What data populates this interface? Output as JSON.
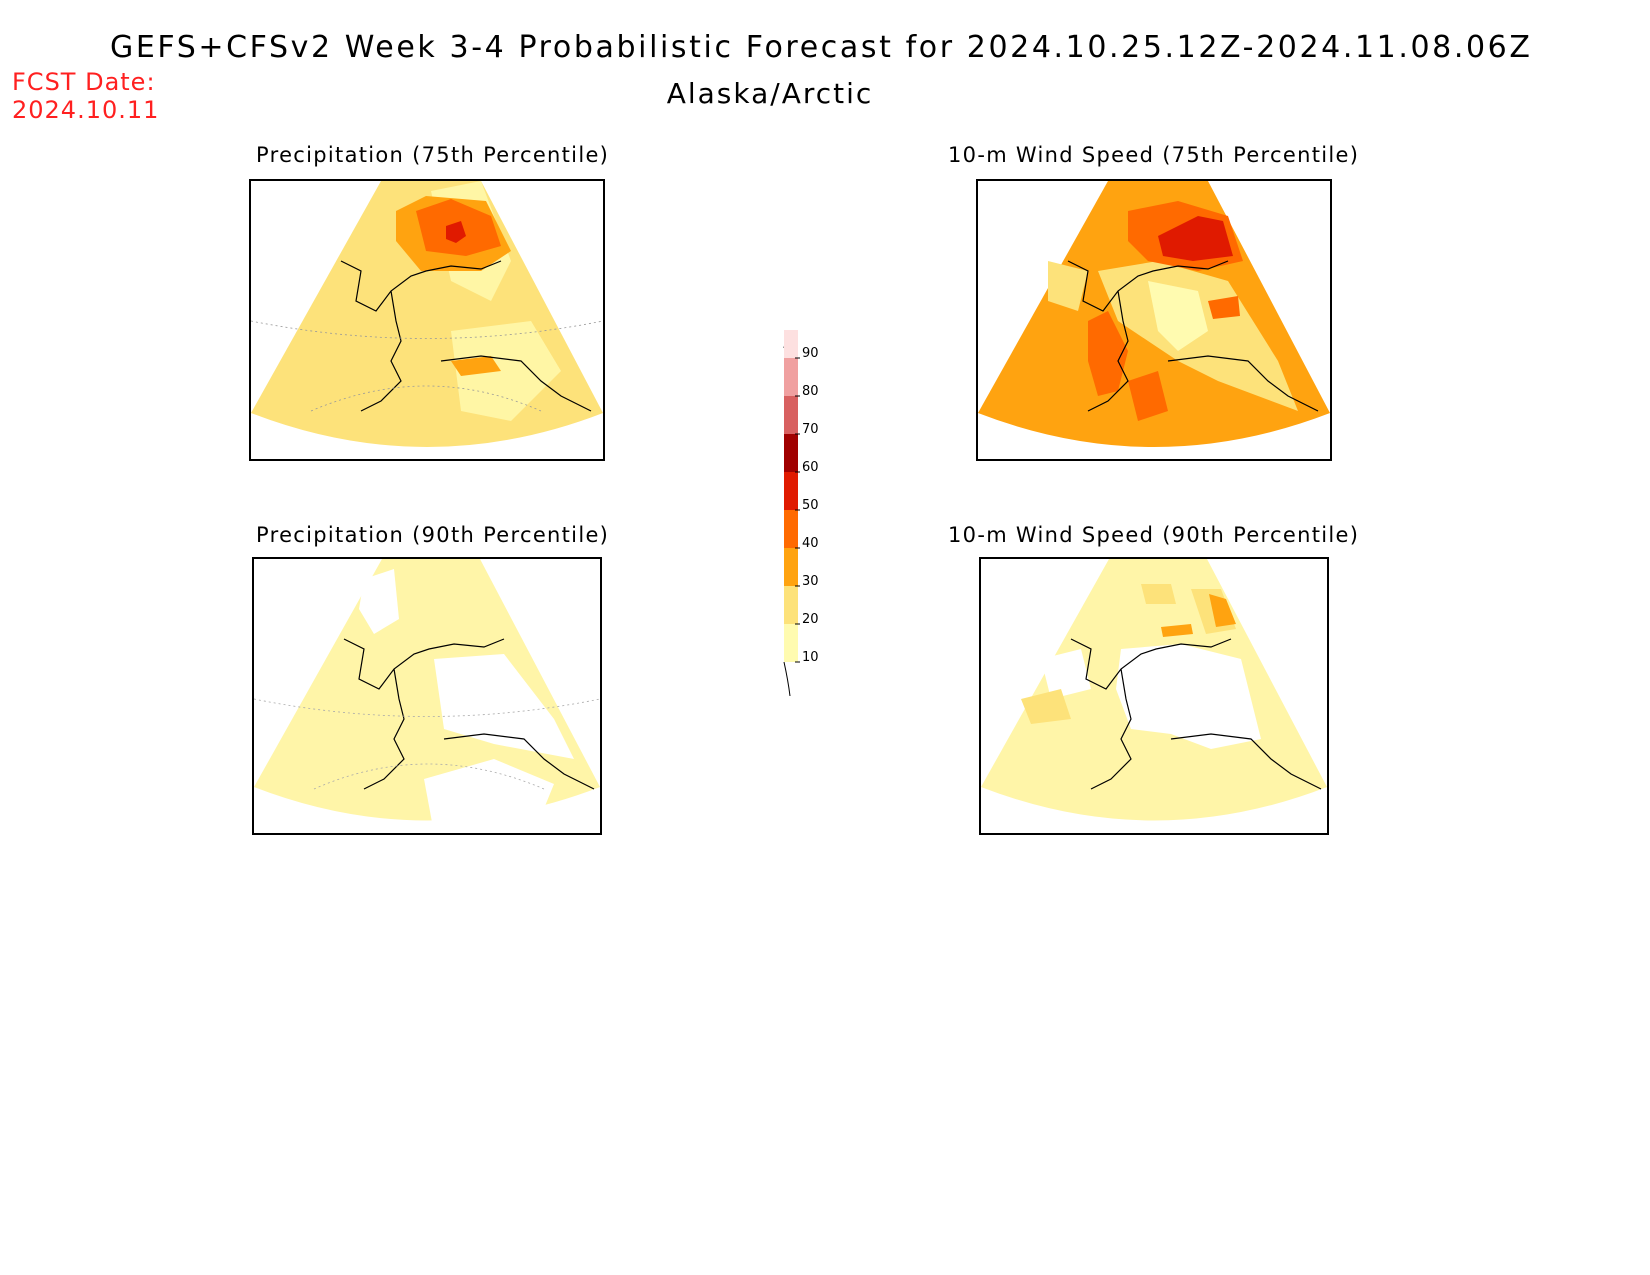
{
  "header": {
    "title": "GEFS+CFSv2 Week 3-4 Probabilistic Forecast for 2024.10.25.12Z-2024.11.08.06Z",
    "region": "Alaska/Arctic",
    "fcst_label": "FCST Date:",
    "fcst_date": "2024.10.11"
  },
  "panels": [
    {
      "title": "Precipitation (75th Percentile)",
      "base_color": "#fde27a"
    },
    {
      "title": "10-m Wind Speed (75th Percentile)",
      "base_color": "#ffa310"
    },
    {
      "title": "Precipitation (90th Percentile)",
      "base_color": "#fff5a8"
    },
    {
      "title": "10-m Wind Speed (90th Percentile)",
      "base_color": "#fff5a8"
    }
  ],
  "legend": {
    "levels": [
      "10",
      "20",
      "30",
      "40",
      "50",
      "60",
      "70",
      "80",
      "90"
    ],
    "colors": [
      "#fffbb0",
      "#fde27a",
      "#ffa310",
      "#ff6a00",
      "#e01a00",
      "#a00000",
      "#d86060",
      "#f0a0a0",
      "#fde0e0"
    ]
  }
}
